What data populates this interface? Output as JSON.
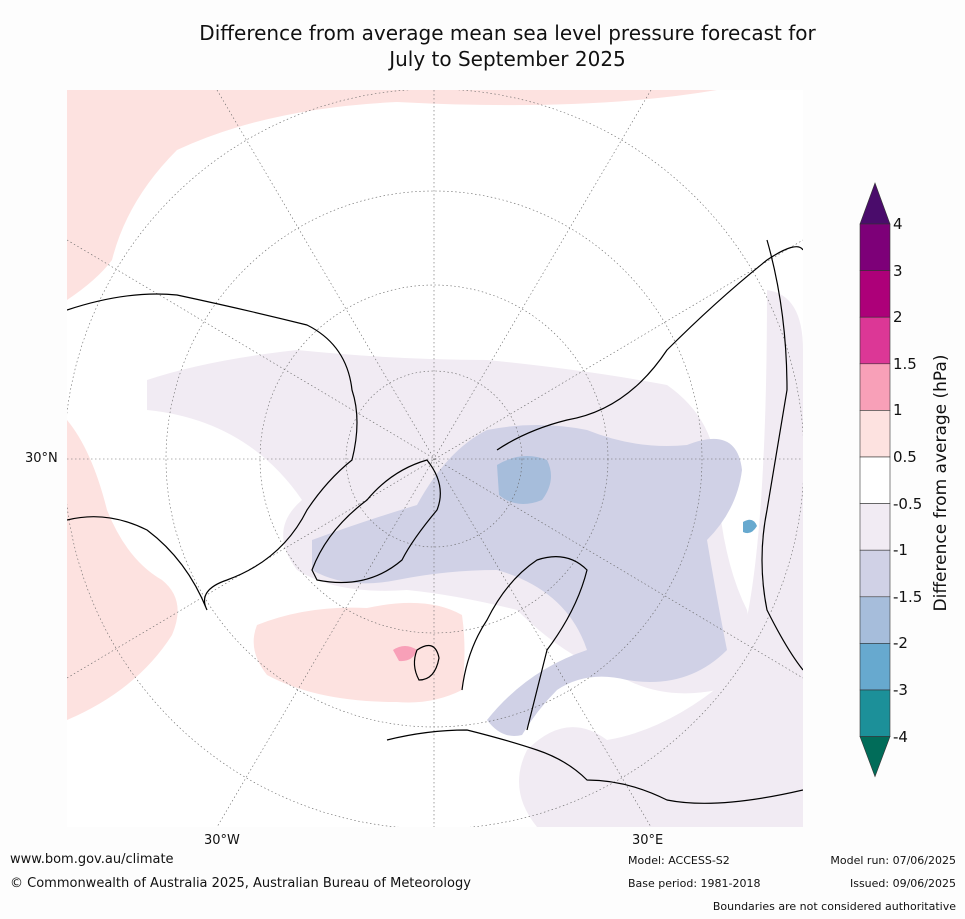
{
  "title": {
    "line1": "Difference from average mean sea level pressure forecast for",
    "line2": "July to September 2025"
  },
  "map": {
    "graticule_labels": {
      "lat_30n": "30°N",
      "lon_30w": "30°W",
      "lon_30e": "30°E"
    },
    "regions": [
      {
        "name": "north-atlantic-high",
        "category": "0.5 to 1"
      },
      {
        "name": "iceland-uk-max",
        "category": "1 to 1.5"
      },
      {
        "name": "arctic-low",
        "category": "-1.5 to -1"
      },
      {
        "name": "barents-low",
        "category": "-2 to -1.5"
      },
      {
        "name": "baikal-low",
        "category": "-3 to -2"
      }
    ]
  },
  "colorbar": {
    "label": "Difference from average (hPa)",
    "ticks": [
      "4",
      "3",
      "2",
      "1.5",
      "1",
      "0.5",
      "-0.5",
      "-1",
      "-1.5",
      "-2",
      "-3",
      "-4"
    ],
    "colors": {
      "above_4": "#4a0c6b",
      "3_to_4": "#7d0078",
      "2_to_3": "#ad0079",
      "1.5_to_2": "#dc3796",
      "1_to_1.5": "#f8a0b8",
      "0.5_to_1": "#fde2e0",
      "-0.5_to_0.5": "#ffffff",
      "-1_to_-0.5": "#f1ebf3",
      "-1.5_to_-1": "#d0d1e6",
      "-2_to_-1.5": "#a6bddb",
      "-3_to_-2": "#67a9cf",
      "-4_to_-3": "#1c9099",
      "below_-4": "#016c59"
    }
  },
  "footer": {
    "site": "www.bom.gov.au/climate",
    "copyright": "© Commonwealth of Australia 2025, Australian Bureau of Meteorology",
    "model": "Model: ACCESS-S2",
    "base_period": "Base period: 1981-2018",
    "model_run": "Model run: 07/06/2025",
    "issued": "Issued: 09/06/2025",
    "disclaimer": "Boundaries are not considered authoritative"
  }
}
